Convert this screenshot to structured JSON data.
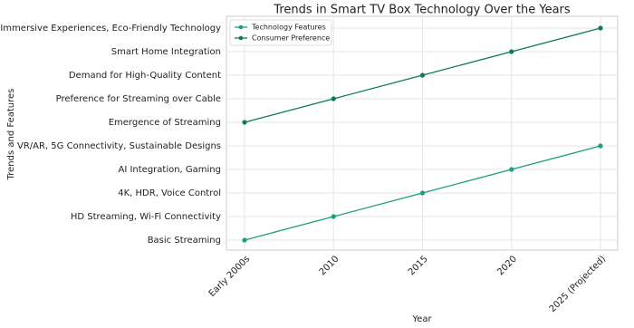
{
  "chart_data": {
    "type": "line",
    "title": "Trends in Smart TV Box Technology Over the Years",
    "x_label": "Year",
    "y_label": "Trends and Features",
    "categories": [
      "Early 2000s",
      "2010",
      "2015",
      "2020",
      "2025 (Projected)"
    ],
    "y_categories": [
      "Basic Streaming",
      "HD Streaming, Wi-Fi Connectivity",
      "4K, HDR, Voice Control",
      "AI Integration, Gaming",
      "VR/AR, 5G Connectivity, Sustainable Designs",
      "Emergence of Streaming",
      "Preference for Streaming over Cable",
      "Demand for High-Quality Content",
      "Smart Home Integration",
      "Immersive Experiences, Eco-Friendly Technology"
    ],
    "series": [
      {
        "name": "Technology Features",
        "color": "#1b9e82",
        "values": [
          "Basic Streaming",
          "HD Streaming, Wi-Fi Connectivity",
          "4K, HDR, Voice Control",
          "AI Integration, Gaming",
          "VR/AR, 5G Connectivity, Sustainable Designs"
        ]
      },
      {
        "name": "Consumer Preference",
        "color": "#0f7a57",
        "values": [
          "Emergence of Streaming",
          "Preference for Streaming over Cable",
          "Demand for High-Quality Content",
          "Smart Home Integration",
          "Immersive Experiences, Eco-Friendly Technology"
        ]
      }
    ],
    "grid": true,
    "legend": "upper left"
  }
}
